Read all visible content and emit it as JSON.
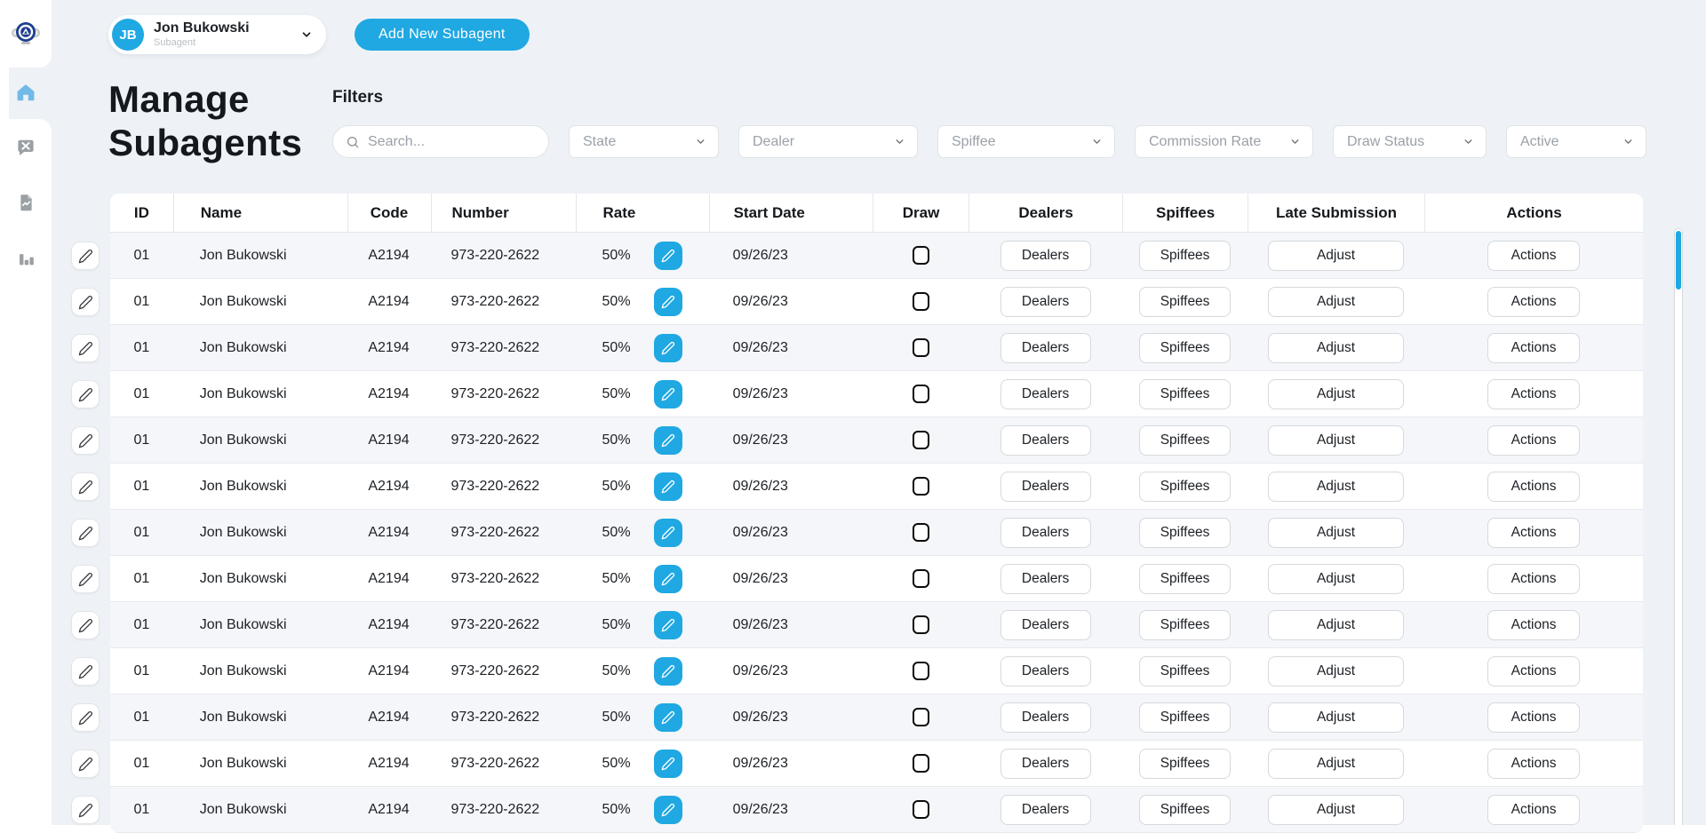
{
  "app": {
    "page_bg": "#eef2f6",
    "accent": "#1fa8e2",
    "row_stripe": "#f4f6f9"
  },
  "sidebar": {
    "logo_icon": "company-badge-logo",
    "items": [
      {
        "icon": "home-icon",
        "active": true
      },
      {
        "icon": "support-chat-icon",
        "active": false
      },
      {
        "icon": "report-file-icon",
        "active": false
      },
      {
        "icon": "bar-chart-icon",
        "active": false
      }
    ]
  },
  "header": {
    "user": {
      "initials": "JB",
      "name": "Jon Bukowski",
      "role": "Subagent"
    },
    "add_button_label": "Add New Subagent"
  },
  "page": {
    "title": "Manage Subagents"
  },
  "filters": {
    "label": "Filters",
    "search_placeholder": "Search...",
    "selects": [
      {
        "key": "state",
        "label": "State"
      },
      {
        "key": "dealer",
        "label": "Dealer"
      },
      {
        "key": "spiffee",
        "label": "Spiffee"
      },
      {
        "key": "commission-rate",
        "label": "Commission Rate"
      },
      {
        "key": "draw-status",
        "label": "Draw Status"
      },
      {
        "key": "active",
        "label": "Active"
      }
    ]
  },
  "table": {
    "columns": [
      "ID",
      "Name",
      "Code",
      "Number",
      "Rate",
      "Start Date",
      "Draw",
      "Dealers",
      "Spiffees",
      "Late Submission",
      "Actions"
    ],
    "row_buttons": {
      "dealers": "Dealers",
      "spiffees": "Spiffees",
      "adjust": "Adjust",
      "actions": "Actions"
    },
    "rows": [
      {
        "id": "01",
        "name": "Jon Bukowski",
        "code": "A2194",
        "number": "973-220-2622",
        "rate": "50%",
        "start_date": "09/26/23",
        "draw_checked": false
      },
      {
        "id": "01",
        "name": "Jon Bukowski",
        "code": "A2194",
        "number": "973-220-2622",
        "rate": "50%",
        "start_date": "09/26/23",
        "draw_checked": false
      },
      {
        "id": "01",
        "name": "Jon Bukowski",
        "code": "A2194",
        "number": "973-220-2622",
        "rate": "50%",
        "start_date": "09/26/23",
        "draw_checked": false
      },
      {
        "id": "01",
        "name": "Jon Bukowski",
        "code": "A2194",
        "number": "973-220-2622",
        "rate": "50%",
        "start_date": "09/26/23",
        "draw_checked": false
      },
      {
        "id": "01",
        "name": "Jon Bukowski",
        "code": "A2194",
        "number": "973-220-2622",
        "rate": "50%",
        "start_date": "09/26/23",
        "draw_checked": false
      },
      {
        "id": "01",
        "name": "Jon Bukowski",
        "code": "A2194",
        "number": "973-220-2622",
        "rate": "50%",
        "start_date": "09/26/23",
        "draw_checked": false
      },
      {
        "id": "01",
        "name": "Jon Bukowski",
        "code": "A2194",
        "number": "973-220-2622",
        "rate": "50%",
        "start_date": "09/26/23",
        "draw_checked": false
      },
      {
        "id": "01",
        "name": "Jon Bukowski",
        "code": "A2194",
        "number": "973-220-2622",
        "rate": "50%",
        "start_date": "09/26/23",
        "draw_checked": false
      },
      {
        "id": "01",
        "name": "Jon Bukowski",
        "code": "A2194",
        "number": "973-220-2622",
        "rate": "50%",
        "start_date": "09/26/23",
        "draw_checked": false
      },
      {
        "id": "01",
        "name": "Jon Bukowski",
        "code": "A2194",
        "number": "973-220-2622",
        "rate": "50%",
        "start_date": "09/26/23",
        "draw_checked": false
      },
      {
        "id": "01",
        "name": "Jon Bukowski",
        "code": "A2194",
        "number": "973-220-2622",
        "rate": "50%",
        "start_date": "09/26/23",
        "draw_checked": false
      },
      {
        "id": "01",
        "name": "Jon Bukowski",
        "code": "A2194",
        "number": "973-220-2622",
        "rate": "50%",
        "start_date": "09/26/23",
        "draw_checked": false
      },
      {
        "id": "01",
        "name": "Jon Bukowski",
        "code": "A2194",
        "number": "973-220-2622",
        "rate": "50%",
        "start_date": "09/26/23",
        "draw_checked": false
      }
    ]
  }
}
